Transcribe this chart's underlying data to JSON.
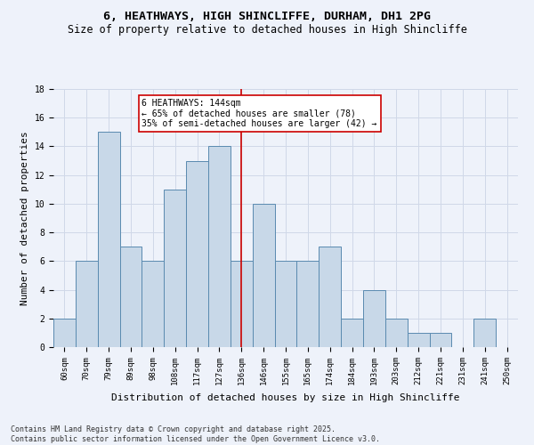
{
  "title_line1": "6, HEATHWAYS, HIGH SHINCLIFFE, DURHAM, DH1 2PG",
  "title_line2": "Size of property relative to detached houses in High Shincliffe",
  "xlabel": "Distribution of detached houses by size in High Shincliffe",
  "ylabel": "Number of detached properties",
  "categories": [
    "60sqm",
    "70sqm",
    "79sqm",
    "89sqm",
    "98sqm",
    "108sqm",
    "117sqm",
    "127sqm",
    "136sqm",
    "146sqm",
    "155sqm",
    "165sqm",
    "174sqm",
    "184sqm",
    "193sqm",
    "203sqm",
    "212sqm",
    "221sqm",
    "231sqm",
    "241sqm",
    "250sqm"
  ],
  "values": [
    2,
    6,
    15,
    7,
    6,
    11,
    13,
    14,
    6,
    10,
    6,
    6,
    7,
    2,
    4,
    2,
    1,
    1,
    0,
    2,
    0
  ],
  "bar_color": "#c8d8e8",
  "bar_edge_color": "#5a8ab0",
  "vline_x_index": 8,
  "vline_color": "#cc0000",
  "annotation_text": "6 HEATHWAYS: 144sqm\n← 65% of detached houses are smaller (78)\n35% of semi-detached houses are larger (42) →",
  "annotation_box_color": "#ffffff",
  "annotation_border_color": "#cc0000",
  "ylim": [
    0,
    18
  ],
  "yticks": [
    0,
    2,
    4,
    6,
    8,
    10,
    12,
    14,
    16,
    18
  ],
  "grid_color": "#d0d8e8",
  "background_color": "#eef2fa",
  "footer_text": "Contains HM Land Registry data © Crown copyright and database right 2025.\nContains public sector information licensed under the Open Government Licence v3.0.",
  "title_fontsize": 9.5,
  "subtitle_fontsize": 8.5,
  "axis_label_fontsize": 8,
  "tick_fontsize": 6.5,
  "annotation_fontsize": 7,
  "footer_fontsize": 6
}
